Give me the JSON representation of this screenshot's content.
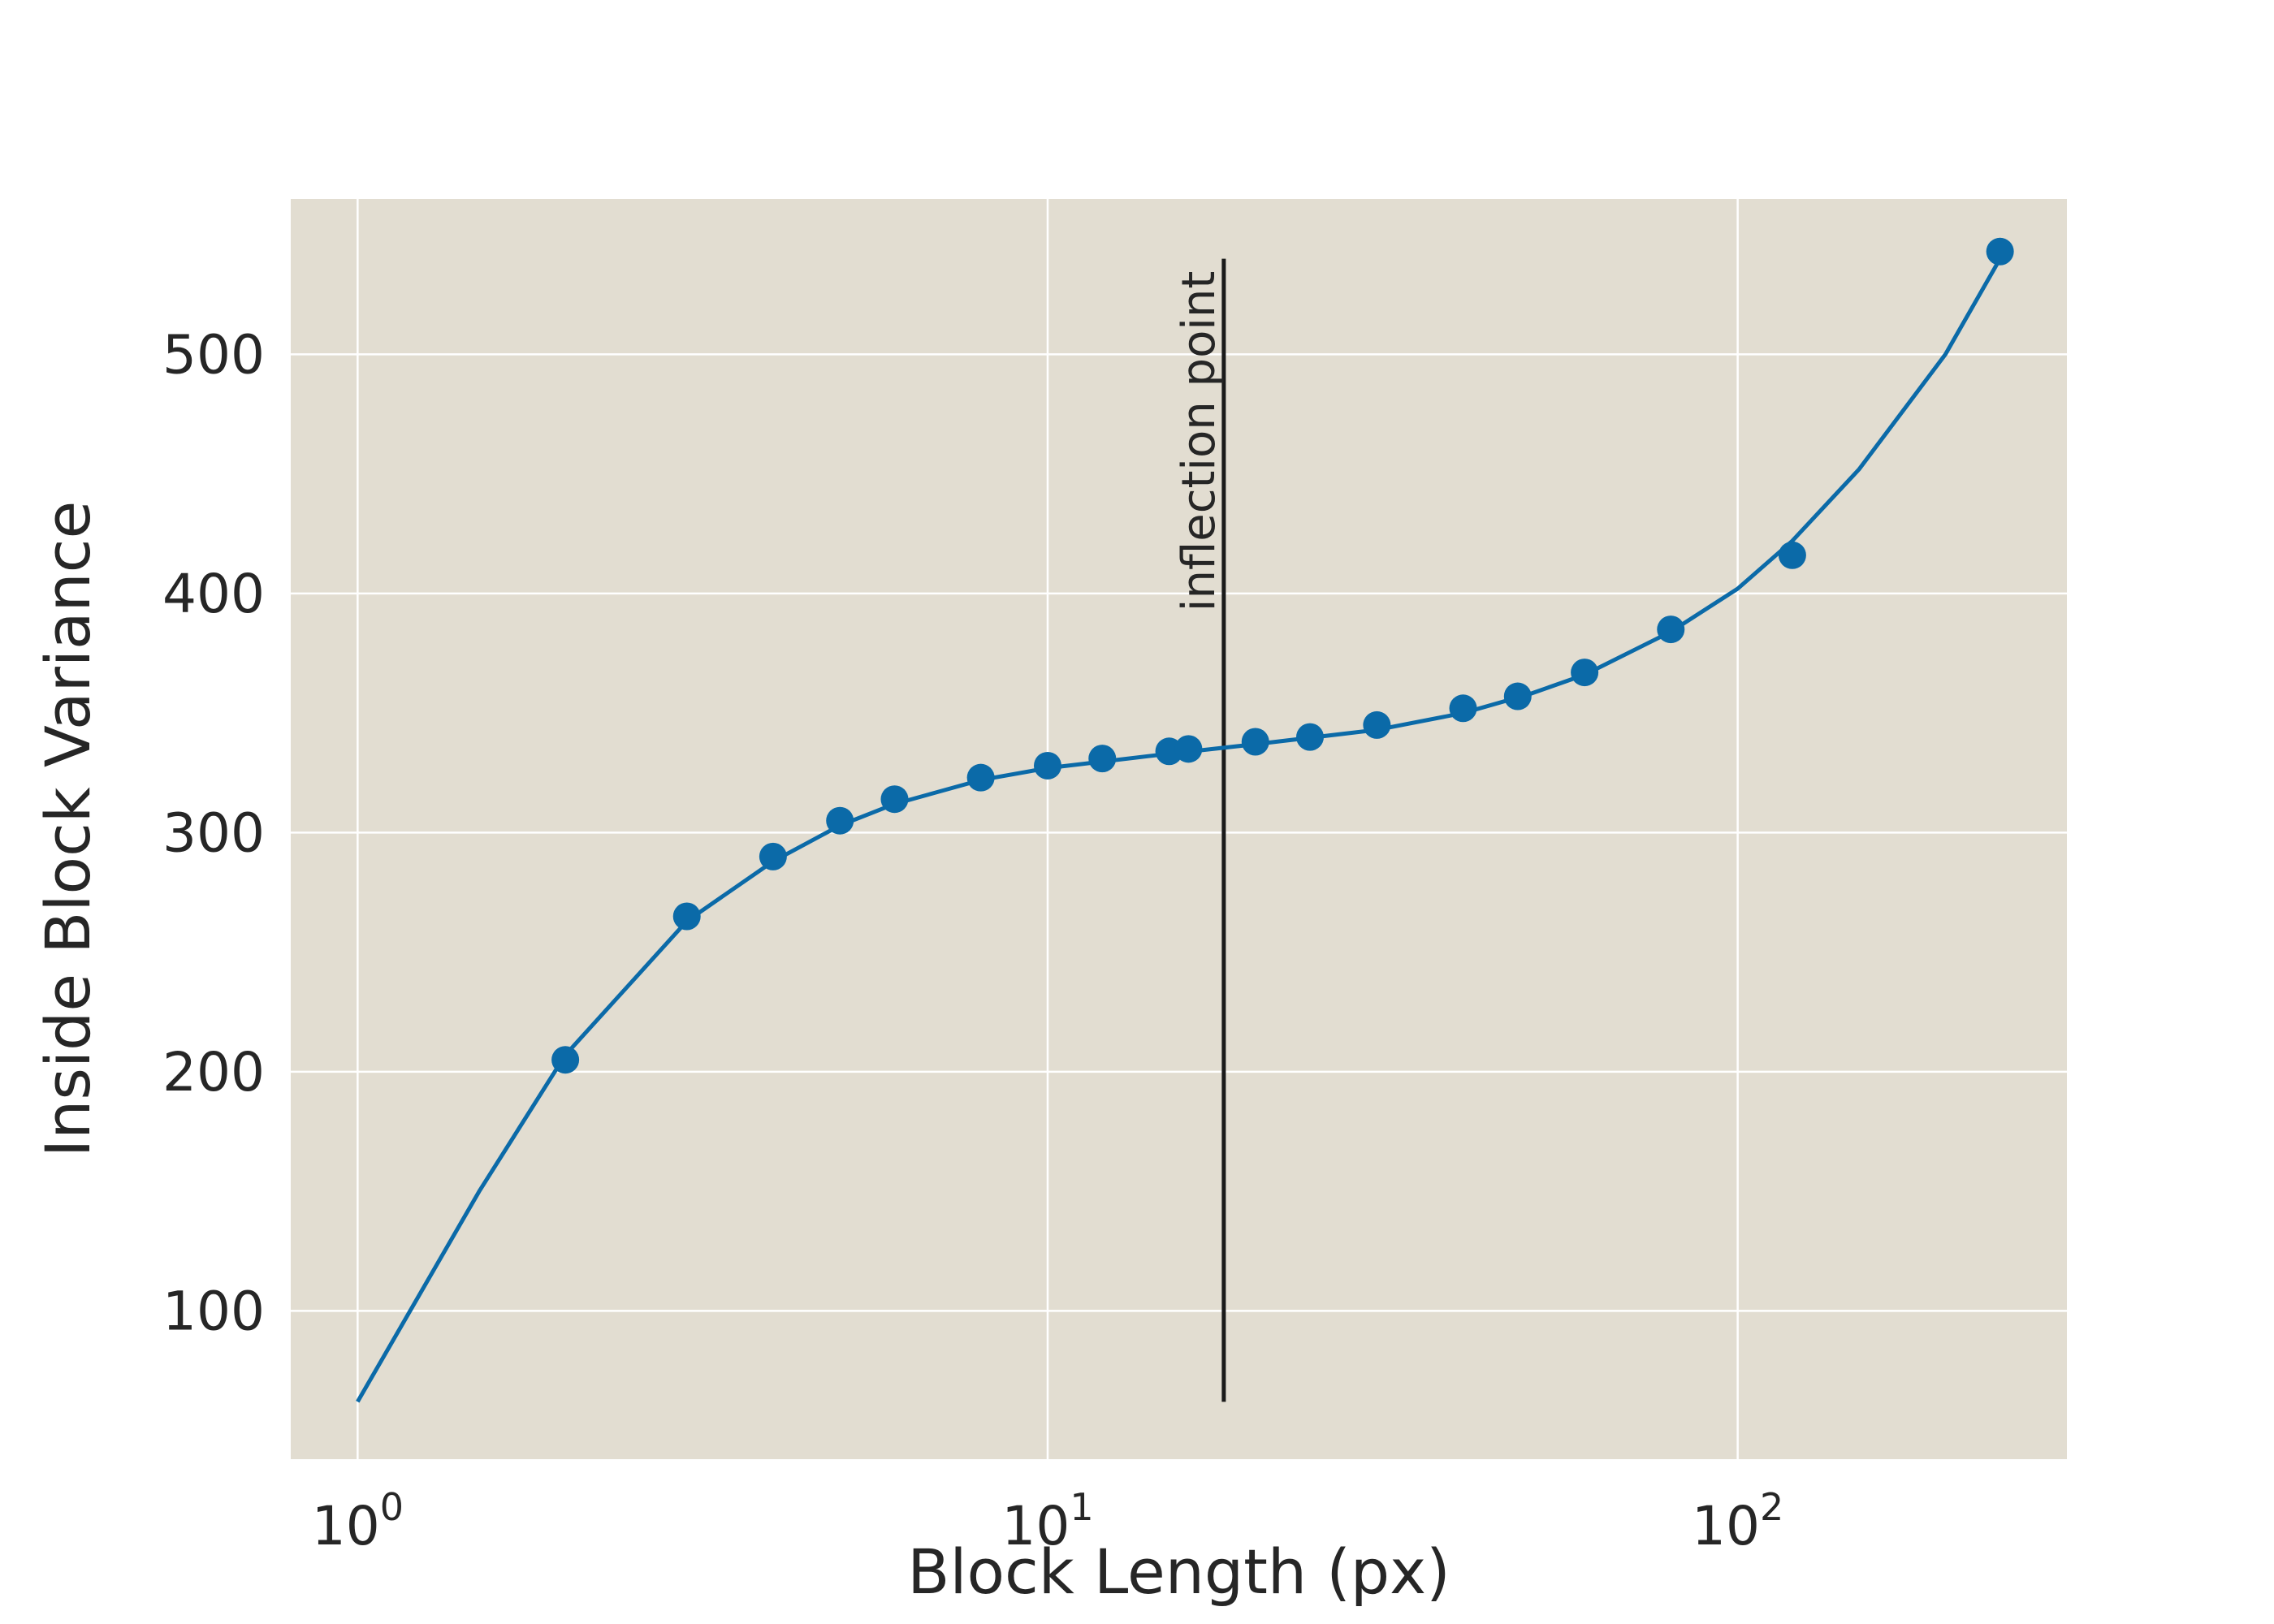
{
  "chart_data": {
    "type": "line",
    "title": "",
    "xlabel": "Block Length (px)",
    "ylabel": "Inside Block Variance",
    "xscale": "log",
    "xlim": [
      0.8,
      300
    ],
    "ylim": [
      38,
      565
    ],
    "xticks": [
      {
        "value": 1,
        "base": "10",
        "exp": "0"
      },
      {
        "value": 10,
        "base": "10",
        "exp": "1"
      },
      {
        "value": 100,
        "base": "10",
        "exp": "2"
      }
    ],
    "yticks": [
      {
        "value": 100,
        "label": "100"
      },
      {
        "value": 200,
        "label": "200"
      },
      {
        "value": 300,
        "label": "300"
      },
      {
        "value": 400,
        "label": "400"
      },
      {
        "value": 500,
        "label": "500"
      }
    ],
    "grid": true,
    "background_color": "#e2ddd1",
    "grid_color": "#ffffff",
    "series_color": "#0b6aa8",
    "annotation_color": "#1a1a1a",
    "series": [
      {
        "points": [
          {
            "x": 2,
            "y": 205
          },
          {
            "x": 3,
            "y": 265
          },
          {
            "x": 4,
            "y": 290
          },
          {
            "x": 5,
            "y": 305
          },
          {
            "x": 6,
            "y": 314
          },
          {
            "x": 8,
            "y": 323
          },
          {
            "x": 10,
            "y": 328
          },
          {
            "x": 12,
            "y": 331
          },
          {
            "x": 15,
            "y": 334
          },
          {
            "x": 16,
            "y": 335
          },
          {
            "x": 20,
            "y": 338
          },
          {
            "x": 24,
            "y": 340
          },
          {
            "x": 30,
            "y": 345
          },
          {
            "x": 40,
            "y": 352
          },
          {
            "x": 48,
            "y": 357
          },
          {
            "x": 60,
            "y": 367
          },
          {
            "x": 80,
            "y": 385
          },
          {
            "x": 120,
            "y": 416
          },
          {
            "x": 240,
            "y": 543
          }
        ],
        "curve": [
          {
            "x": 1,
            "y": 62
          },
          {
            "x": 1.5,
            "y": 150
          },
          {
            "x": 2,
            "y": 207
          },
          {
            "x": 3,
            "y": 263
          },
          {
            "x": 4,
            "y": 288
          },
          {
            "x": 5,
            "y": 303
          },
          {
            "x": 6,
            "y": 312
          },
          {
            "x": 8,
            "y": 322
          },
          {
            "x": 10,
            "y": 327
          },
          {
            "x": 14,
            "y": 332
          },
          {
            "x": 20,
            "y": 337
          },
          {
            "x": 30,
            "y": 343
          },
          {
            "x": 40,
            "y": 350
          },
          {
            "x": 50,
            "y": 358
          },
          {
            "x": 60,
            "y": 366
          },
          {
            "x": 80,
            "y": 384
          },
          {
            "x": 100,
            "y": 402
          },
          {
            "x": 120,
            "y": 422
          },
          {
            "x": 150,
            "y": 452
          },
          {
            "x": 200,
            "y": 500
          },
          {
            "x": 240,
            "y": 540
          }
        ]
      }
    ],
    "annotation": {
      "label": "inflection point",
      "x": 18,
      "y_range": [
        62,
        540
      ]
    }
  }
}
